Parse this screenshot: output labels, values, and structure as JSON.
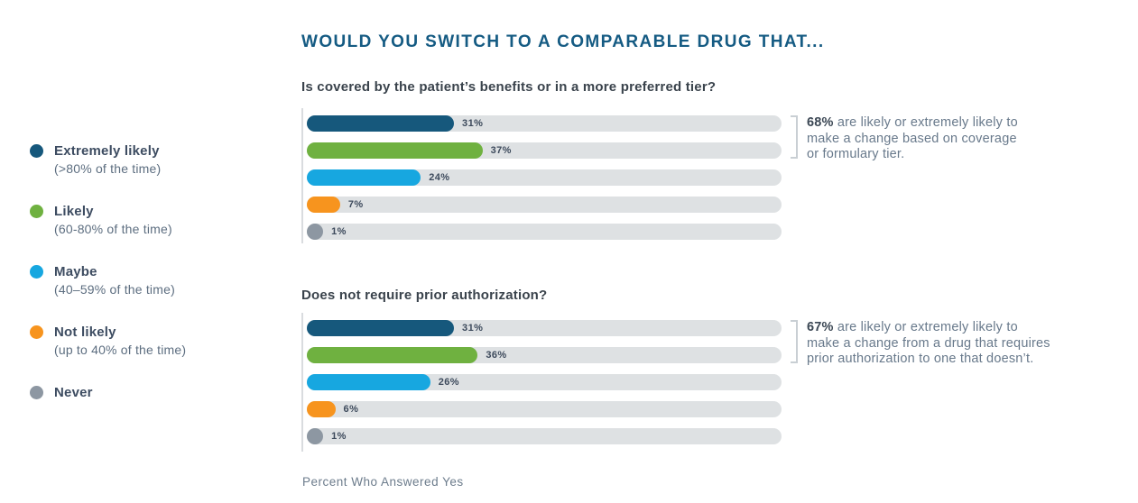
{
  "title": "WOULD YOU SWITCH TO A COMPARABLE DRUG THAT...",
  "footer": "Percent Who Answered Yes",
  "colors": {
    "dark_blue": "#16587c",
    "green": "#6fb140",
    "light_blue": "#17a7e0",
    "orange": "#f7941e",
    "gray": "#8d97a2",
    "track_gray": "#dee1e3",
    "title_blue": "#155b83",
    "heading_dark": "#3a434c",
    "annotation_text": "#68798b",
    "bracket_gray": "#c9cfd4"
  },
  "legend": {
    "items": [
      {
        "label": "Extremely likely",
        "sublabel": "(>80% of the time)",
        "color": "#16587c"
      },
      {
        "label": "Likely",
        "sublabel": "(60-80% of the time)",
        "color": "#6fb140"
      },
      {
        "label": "Maybe",
        "sublabel": "(40–59% of the time)",
        "color": "#17a7e0"
      },
      {
        "label": "Not likely",
        "sublabel": "(up to 40% of the time)",
        "color": "#f7941e"
      },
      {
        "label": "Never",
        "sublabel": "",
        "color": "#8d97a2"
      }
    ]
  },
  "chart_data": [
    {
      "type": "bar",
      "title": "Is covered by the patient’s benefits or in a more preferred tier?",
      "categories": [
        "Extremely likely",
        "Likely",
        "Maybe",
        "Not likely",
        "Never"
      ],
      "values": [
        31,
        37,
        24,
        7,
        1
      ],
      "value_labels": [
        "31%",
        "37%",
        "24%",
        "7%",
        "1%"
      ],
      "xlim": [
        0,
        100
      ],
      "xlabel": "Percent Who Answered Yes",
      "bracket_rows": [
        0,
        1
      ],
      "annotation": {
        "highlight": "68%",
        "lines": [
          "are likely or extremely likely to",
          "make a change based on coverage",
          "or formulary tier."
        ]
      }
    },
    {
      "type": "bar",
      "title": "Does not require prior authorization?",
      "categories": [
        "Extremely likely",
        "Likely",
        "Maybe",
        "Not likely",
        "Never"
      ],
      "values": [
        31,
        36,
        26,
        6,
        1
      ],
      "value_labels": [
        "31%",
        "36%",
        "26%",
        "6%",
        "1%"
      ],
      "xlim": [
        0,
        100
      ],
      "xlabel": "Percent Who Answered Yes",
      "bracket_rows": [
        0,
        1
      ],
      "annotation": {
        "highlight": "67%",
        "lines": [
          "are likely or extremely likely to",
          "make a change from a drug that requires",
          "prior authorization to one that doesn’t."
        ]
      }
    }
  ]
}
